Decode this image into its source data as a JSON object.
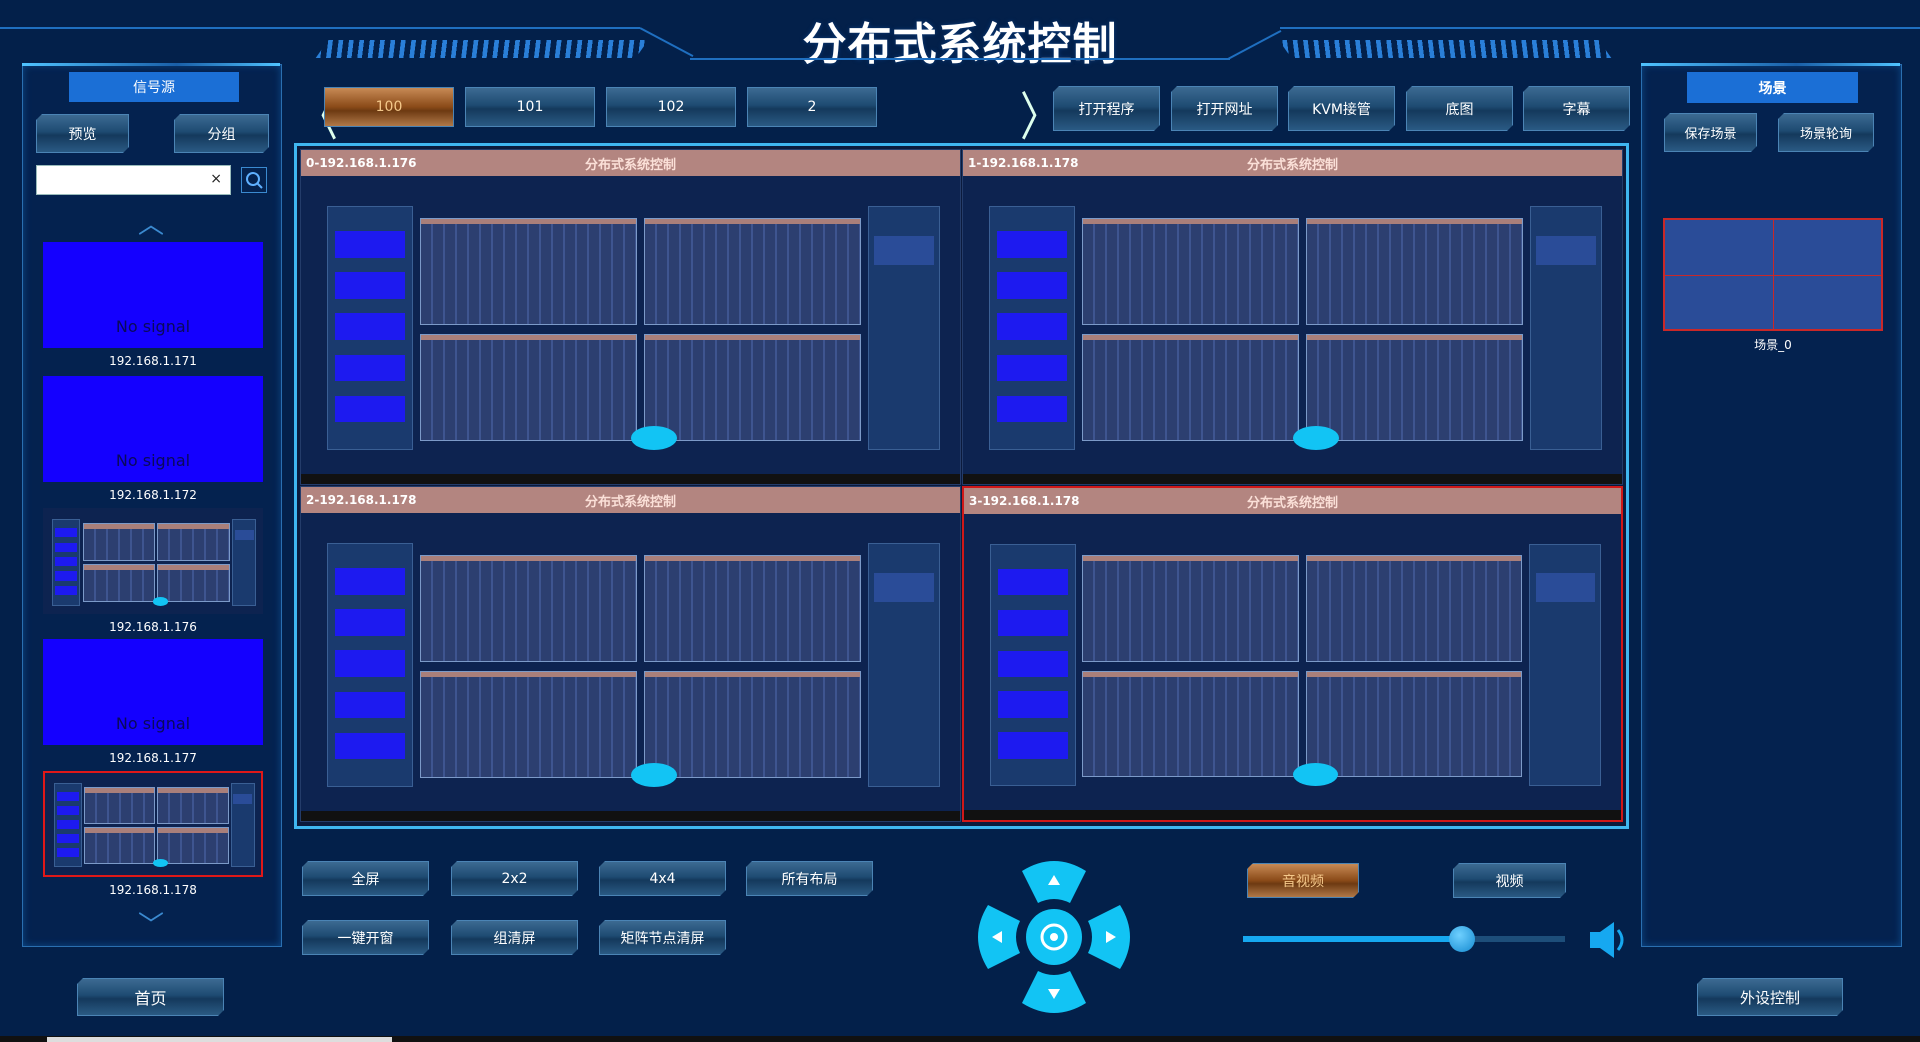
{
  "header": {
    "title": "分布式系统控制"
  },
  "left_panel": {
    "tab": "信号源",
    "buttons": {
      "preview": "预览",
      "group": "分组"
    },
    "search": {
      "value": "",
      "placeholder": "",
      "clear": "×"
    },
    "sources": [
      {
        "label": "192.168.1.171",
        "status": "No signal",
        "type": "nosignal"
      },
      {
        "label": "192.168.1.172",
        "status": "No signal",
        "type": "nosignal"
      },
      {
        "label": "192.168.1.176",
        "status": "",
        "type": "screen"
      },
      {
        "label": "192.168.1.177",
        "status": "No signal",
        "type": "nosignal"
      },
      {
        "label": "192.168.1.178",
        "status": "",
        "type": "screen",
        "selected": true
      }
    ],
    "home": "首页"
  },
  "layout_tabs": [
    {
      "label": "100",
      "active": true
    },
    {
      "label": "101"
    },
    {
      "label": "102"
    },
    {
      "label": "2"
    }
  ],
  "toolbar": [
    "打开程序",
    "打开网址",
    "KVM接管",
    "底图",
    "字幕"
  ],
  "display": {
    "windows": [
      {
        "label": "0-192.168.1.176",
        "title": "分布式系统控制"
      },
      {
        "label": "1-192.168.1.178",
        "title": "分布式系统控制"
      },
      {
        "label": "2-192.168.1.178",
        "title": "分布式系统控制"
      },
      {
        "label": "3-192.168.1.178",
        "title": "分布式系统控制",
        "selected": true
      }
    ]
  },
  "controls": {
    "row1": [
      "全屏",
      "2x2",
      "4x4",
      "所有布局"
    ],
    "row2": [
      "一键开窗",
      "组清屏",
      "矩阵节点清屏"
    ],
    "audio_video": "音视频",
    "video": "视频",
    "volume_percent": 68
  },
  "right_panel": {
    "tab": "场景",
    "buttons": {
      "save": "保存场景",
      "poll": "场景轮询"
    },
    "scenes": [
      {
        "label": "场景_0"
      }
    ],
    "peripheral": "外设控制"
  },
  "colors": {
    "accent": "#1b6fd6",
    "active_tab": "#8a4a18",
    "selection": "#e01818",
    "no_signal": "#1400ff"
  }
}
